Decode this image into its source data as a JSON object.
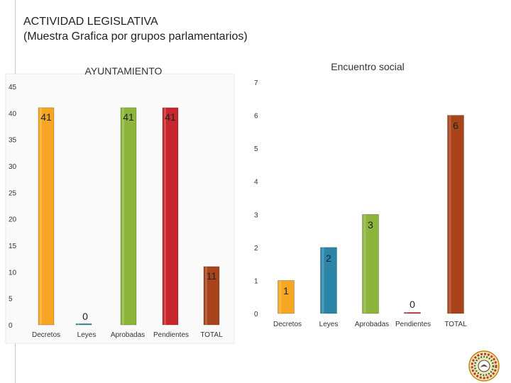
{
  "slide": {
    "title_line1": "ACTIVIDAD LEGISLATIVA",
    "title_line2": "(Muestra Grafica por grupos parlamentarios)"
  },
  "colors": {
    "decretos": "#F5A623",
    "leyes": "#2A85A8",
    "aprobadas": "#8DB43B",
    "pendientes": "#C7262C",
    "total": "#A8431C"
  },
  "chart_data": [
    {
      "type": "bar",
      "title": "AYUNTAMIENTO",
      "categories": [
        "Decretos",
        "Leyes",
        "Aprobadas",
        "Pendientes",
        "TOTAL"
      ],
      "values": [
        41,
        0,
        41,
        41,
        11
      ],
      "data_labels": [
        "41",
        "0",
        "41",
        "41",
        "11"
      ],
      "ylim": [
        0,
        45
      ],
      "yticks": [
        0,
        5,
        10,
        15,
        20,
        25,
        30,
        35,
        40,
        45
      ],
      "xlabel": "",
      "ylabel": "",
      "grid": false,
      "legend": "none"
    },
    {
      "type": "bar",
      "title": "Encuentro social",
      "categories": [
        "Decretos",
        "Leyes",
        "Aprobadas",
        "Pendientes",
        "TOTAL"
      ],
      "values": [
        1,
        2,
        3,
        0,
        6
      ],
      "data_labels": [
        "1",
        "2",
        "3",
        "0",
        "6"
      ],
      "ylim": [
        0,
        7
      ],
      "yticks": [
        0,
        1,
        2,
        3,
        4,
        5,
        6,
        7
      ],
      "xlabel": "",
      "ylabel": "",
      "grid": false,
      "legend": "none"
    }
  ],
  "seal": {
    "icon": "congress-seal-icon"
  }
}
